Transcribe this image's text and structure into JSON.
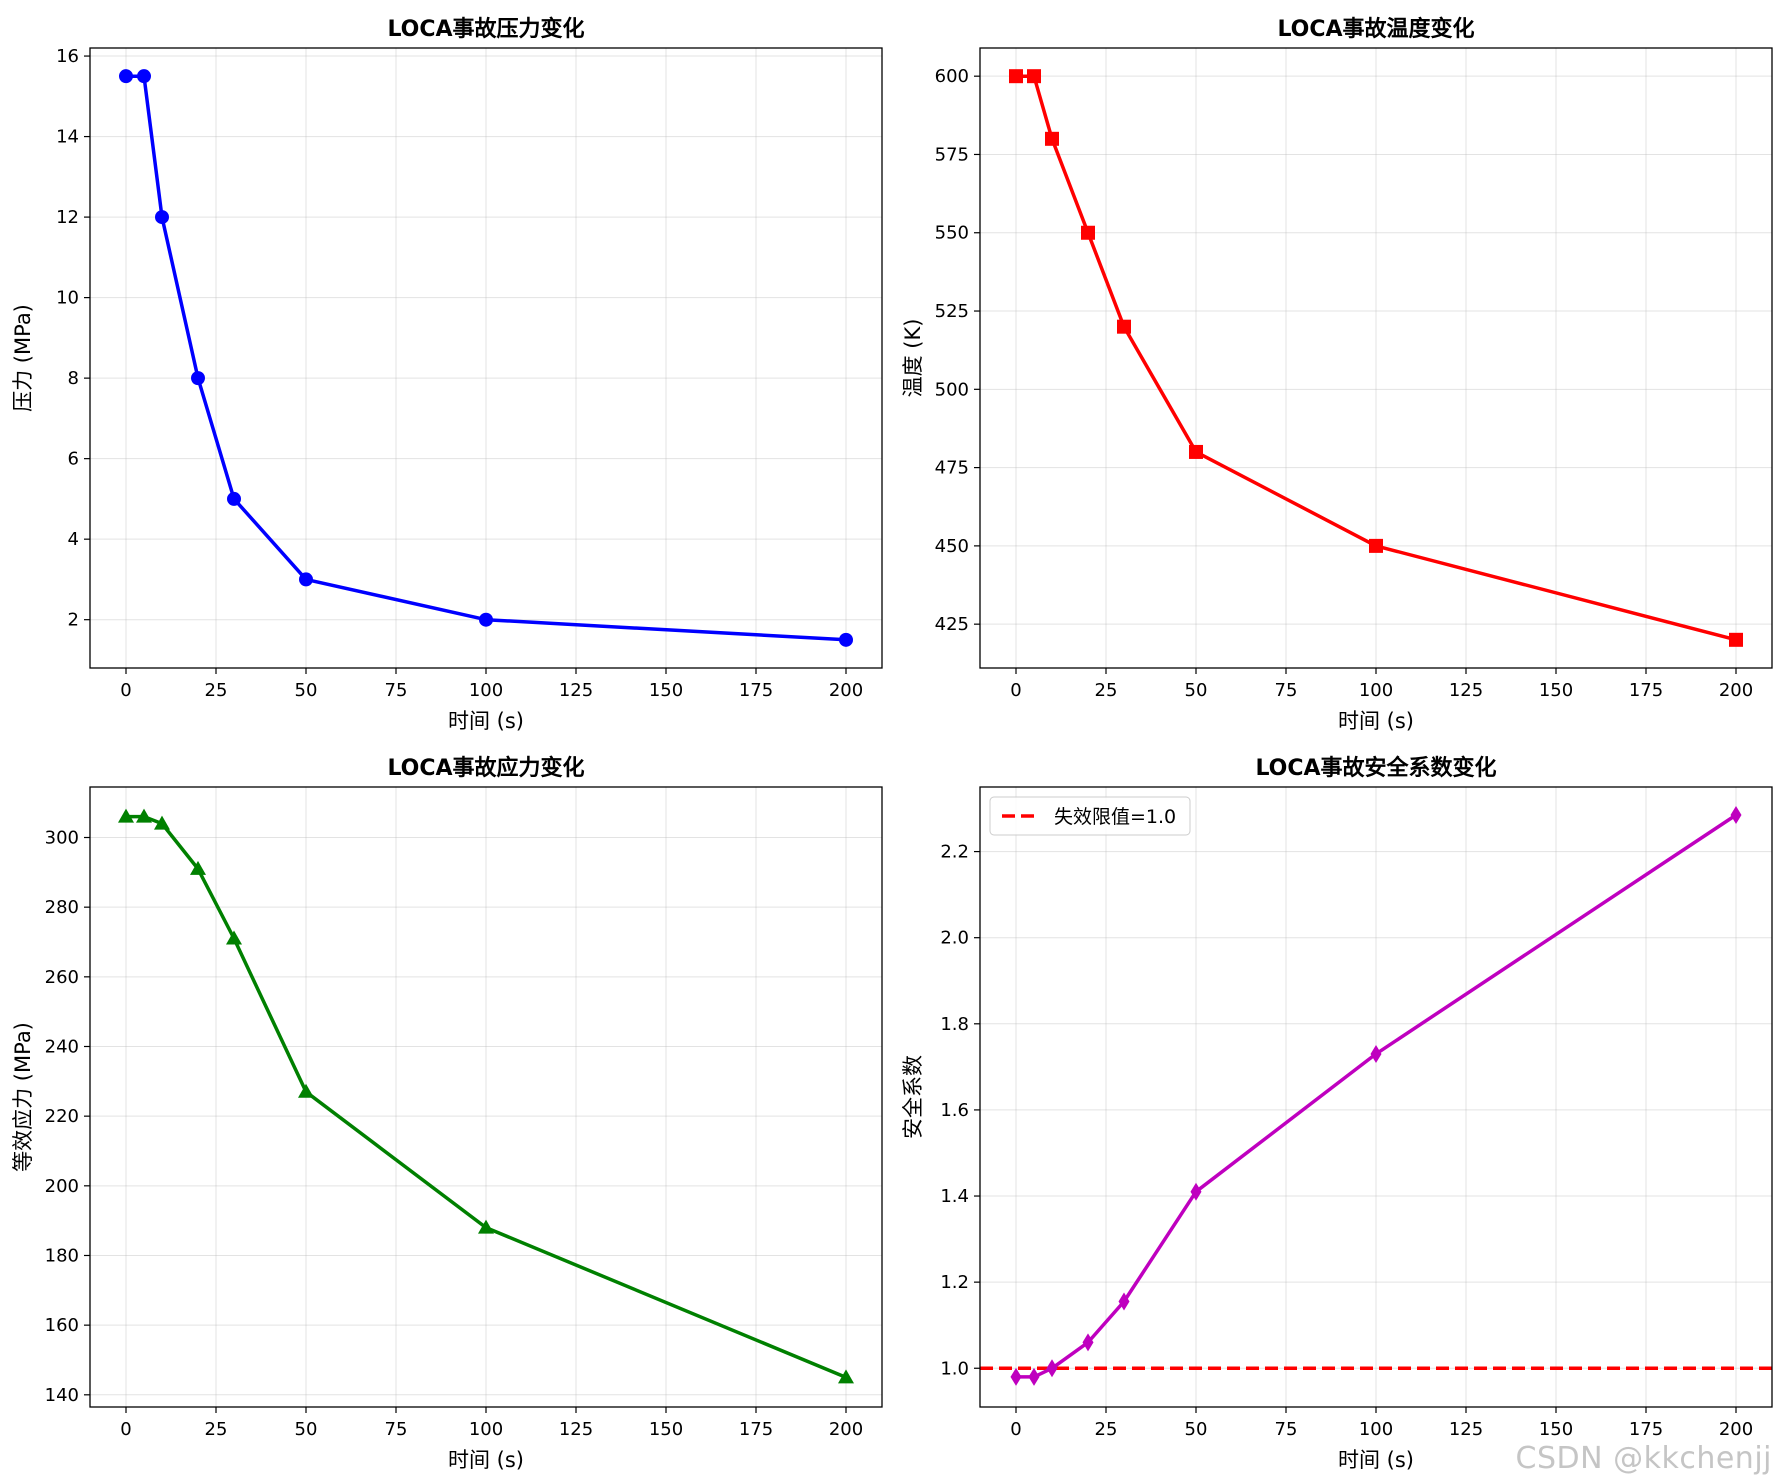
{
  "watermark": "CSDN @kkchenjj",
  "chart_data": [
    {
      "type": "line",
      "title": "LOCA事故压力变化",
      "xlabel": "时间 (s)",
      "ylabel": "压力 (MPa)",
      "xlim": [
        -10,
        210
      ],
      "ylim": [
        0.8,
        16.2
      ],
      "xticks": [
        0,
        25,
        50,
        75,
        100,
        125,
        150,
        175,
        200
      ],
      "yticks": [
        2,
        4,
        6,
        8,
        10,
        12,
        14,
        16
      ],
      "ytick_labels": [
        "2",
        "4",
        "6",
        "8",
        "10",
        "12",
        "14",
        "16"
      ],
      "grid": true,
      "series": [
        {
          "color": "#0000ff",
          "marker": "circle",
          "x": [
            0,
            5,
            10,
            20,
            30,
            50,
            100,
            200
          ],
          "values": [
            15.5,
            15.5,
            12,
            8,
            5,
            3,
            2,
            1.5
          ]
        }
      ]
    },
    {
      "type": "line",
      "title": "LOCA事故温度变化",
      "xlabel": "时间 (s)",
      "ylabel": "温度 (K)",
      "xlim": [
        -10,
        210
      ],
      "ylim": [
        411,
        609
      ],
      "xticks": [
        0,
        25,
        50,
        75,
        100,
        125,
        150,
        175,
        200
      ],
      "yticks": [
        425,
        450,
        475,
        500,
        525,
        550,
        575,
        600
      ],
      "ytick_labels": [
        "425",
        "450",
        "475",
        "500",
        "525",
        "550",
        "575",
        "600"
      ],
      "grid": true,
      "series": [
        {
          "color": "#ff0000",
          "marker": "square",
          "x": [
            0,
            5,
            10,
            20,
            30,
            50,
            100,
            200
          ],
          "values": [
            600,
            600,
            580,
            550,
            520,
            480,
            450,
            420
          ]
        }
      ]
    },
    {
      "type": "line",
      "title": "LOCA事故应力变化",
      "xlabel": "时间 (s)",
      "ylabel": "等效应力 (MPa)",
      "xlim": [
        -10,
        210
      ],
      "ylim": [
        136.5,
        314.5
      ],
      "xticks": [
        0,
        25,
        50,
        75,
        100,
        125,
        150,
        175,
        200
      ],
      "yticks": [
        140,
        160,
        180,
        200,
        220,
        240,
        260,
        280,
        300
      ],
      "ytick_labels": [
        "140",
        "160",
        "180",
        "200",
        "220",
        "240",
        "260",
        "280",
        "300"
      ],
      "grid": true,
      "series": [
        {
          "color": "#008000",
          "marker": "triangle",
          "x": [
            0,
            5,
            10,
            20,
            30,
            50,
            100,
            200
          ],
          "values": [
            306,
            306,
            304,
            291,
            271,
            227,
            188,
            145
          ]
        }
      ]
    },
    {
      "type": "line",
      "title": "LOCA事故安全系数变化",
      "xlabel": "时间 (s)",
      "ylabel": "安全系数",
      "xlim": [
        -10,
        210
      ],
      "ylim": [
        0.91,
        2.35
      ],
      "xticks": [
        0,
        25,
        50,
        75,
        100,
        125,
        150,
        175,
        200
      ],
      "yticks": [
        1.0,
        1.2,
        1.4,
        1.6,
        1.8,
        2.0,
        2.2
      ],
      "ytick_labels": [
        "1.0",
        "1.2",
        "1.4",
        "1.6",
        "1.8",
        "2.0",
        "2.2"
      ],
      "grid": true,
      "legend_position": "top-left",
      "series": [
        {
          "color": "#bf00bf",
          "marker": "diamond",
          "x": [
            0,
            5,
            10,
            20,
            30,
            50,
            100,
            200
          ],
          "values": [
            0.98,
            0.98,
            1.0,
            1.06,
            1.155,
            1.41,
            1.73,
            2.285
          ]
        }
      ],
      "reference_lines": [
        {
          "name": "失效限值=1.0",
          "y": 1.0,
          "color": "#ff0000",
          "style": "dashed"
        }
      ]
    }
  ]
}
